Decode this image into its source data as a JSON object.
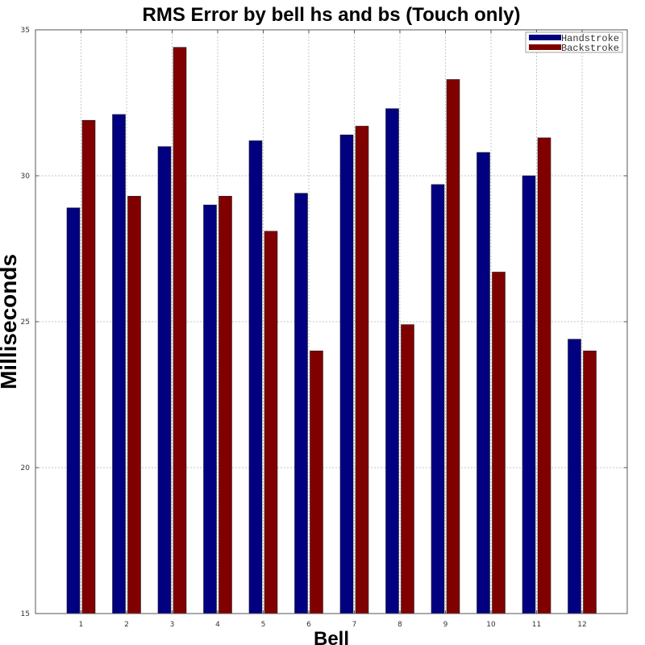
{
  "chart_data": {
    "type": "bar",
    "title": "RMS Error by bell hs and bs (Touch only)",
    "xlabel": "Bell",
    "ylabel": "Milliseconds",
    "categories": [
      "1",
      "2",
      "3",
      "4",
      "5",
      "6",
      "7",
      "8",
      "9",
      "10",
      "11",
      "12"
    ],
    "series": [
      {
        "name": "Handstroke",
        "color": "#000080",
        "values": [
          28.9,
          32.1,
          31.0,
          29.0,
          31.2,
          29.4,
          31.4,
          32.3,
          29.7,
          30.8,
          30.0,
          24.4
        ]
      },
      {
        "name": "Backstroke",
        "color": "#800000",
        "values": [
          31.9,
          29.3,
          34.4,
          29.3,
          28.1,
          24.0,
          31.7,
          24.9,
          33.3,
          26.7,
          31.3,
          24.0
        ]
      }
    ],
    "ylim": [
      15,
      35
    ],
    "yticks": [
      "15",
      "20",
      "25",
      "30",
      "35"
    ],
    "grid": true,
    "legend_position": "top-right"
  }
}
